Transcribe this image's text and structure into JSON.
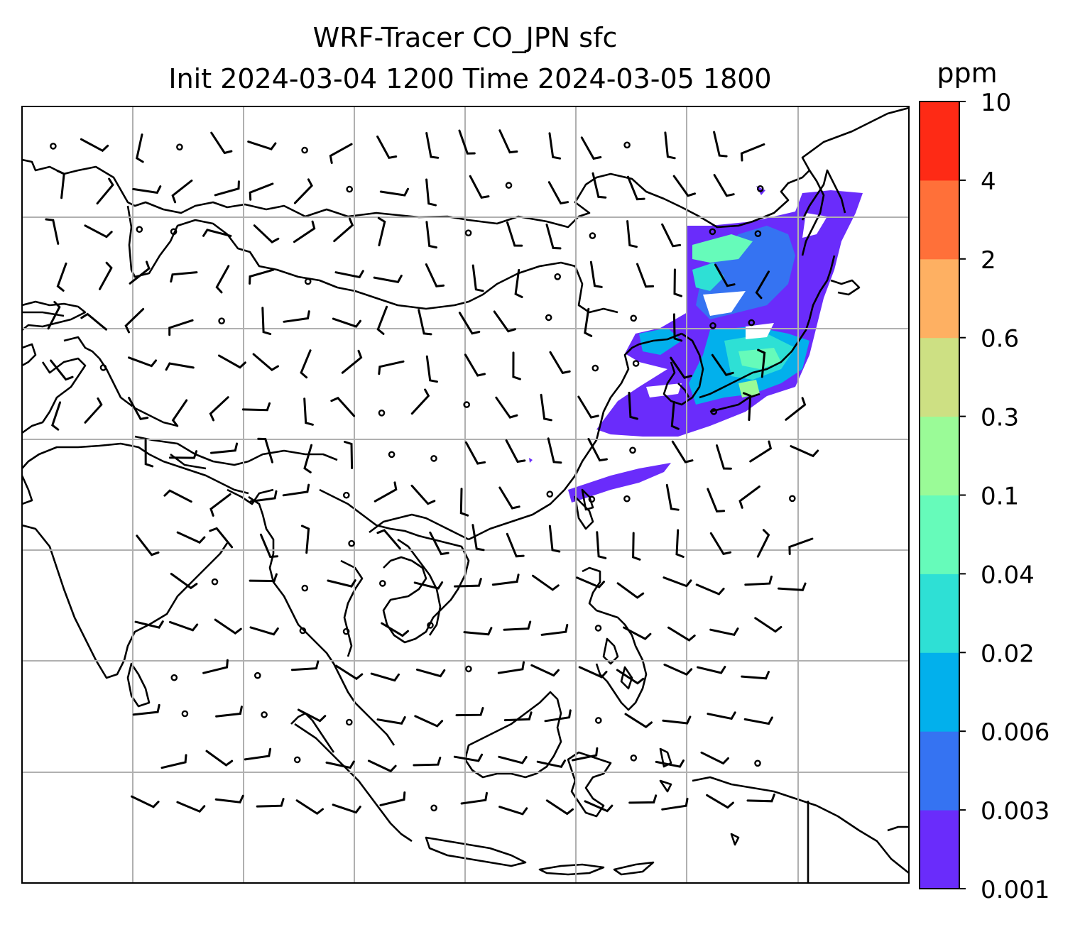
{
  "title": {
    "line1": "WRF-Tracer CO_JPN sfc",
    "line2": "Init 2024-03-04 1200 Time 2024-03-05 1800"
  },
  "colorbar": {
    "unit": "ppm",
    "levels": [
      "0.001",
      "0.003",
      "0.006",
      "0.02",
      "0.04",
      "0.1",
      "0.3",
      "0.6",
      "2",
      "4",
      "10"
    ],
    "colors": [
      "#6a2cfb",
      "#3573f2",
      "#02b0ec",
      "#2ee0d5",
      "#66fbba",
      "#9afb97",
      "#cde083",
      "#feb062",
      "#ff7039",
      "#fe2a15"
    ]
  },
  "map": {
    "gridlines": true,
    "coastline_color": "#000000",
    "barb_color": "#000000"
  }
}
